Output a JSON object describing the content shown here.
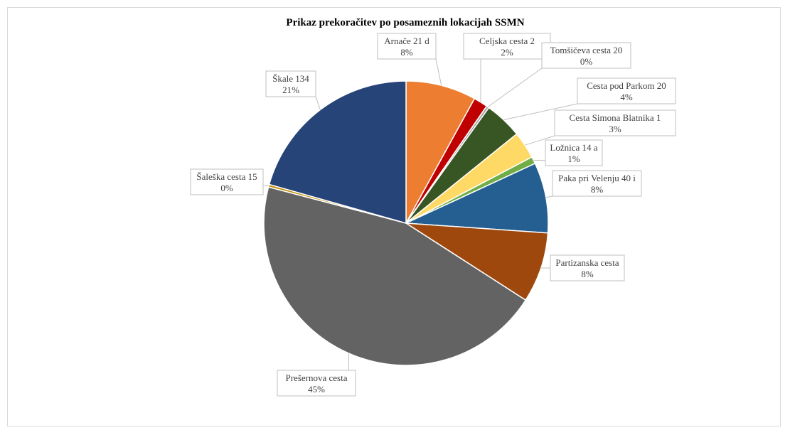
{
  "chart_data": {
    "type": "pie",
    "title": "Prikaz prekoračitev po posameznih lokacijah  SSMN",
    "slices": [
      {
        "label": "Arnače 21 d",
        "pct_label": "8%",
        "value": 8.0,
        "color": "#ED7D31"
      },
      {
        "label": "Celjska cesta 2",
        "pct_label": "2%",
        "value": 1.6,
        "color": "#C00000"
      },
      {
        "label": "Tomšičeva cesta 20",
        "pct_label": "0%",
        "value": 0.3,
        "color": "#A5A5A5"
      },
      {
        "label": "Cesta pod Parkom 20",
        "pct_label": "4%",
        "value": 4.3,
        "color": "#375623"
      },
      {
        "label": "Cesta Simona Blatnika 1",
        "pct_label": "3%",
        "value": 3.1,
        "color": "#FFD966"
      },
      {
        "label": "Ložnica 14 a",
        "pct_label": "1%",
        "value": 0.8,
        "color": "#70AD47"
      },
      {
        "label": "Paka pri Velenju 40 i",
        "pct_label": "8%",
        "value": 8.0,
        "color": "#255E91"
      },
      {
        "label": "Partizanska cesta",
        "pct_label": "8%",
        "value": 8.0,
        "color": "#9E480E"
      },
      {
        "label": "Prešernova cesta",
        "pct_label": "45%",
        "value": 45.0,
        "color": "#636363"
      },
      {
        "label": "Šaleška cesta 15",
        "pct_label": "0%",
        "value": 0.3,
        "color": "#BF8F00"
      },
      {
        "label": "Škale 134",
        "pct_label": "21%",
        "value": 20.6,
        "color": "#264478"
      }
    ]
  }
}
